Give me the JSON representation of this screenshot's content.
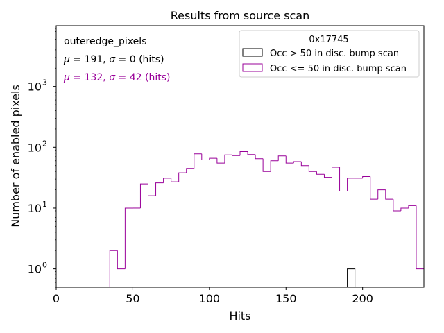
{
  "chart_data": {
    "type": "histogram",
    "title": "Results from source scan",
    "xlabel": "Hits",
    "ylabel": "Number of enabled pixels",
    "xlim": [
      0,
      240
    ],
    "ylim": [
      0.5,
      10000
    ],
    "yscale": "log",
    "xticks": [
      "0",
      "50",
      "100",
      "150",
      "200"
    ],
    "xtick_values": [
      0,
      50,
      100,
      150,
      200
    ],
    "yticks": [
      {
        "value": 1,
        "base": "10",
        "exp": "0"
      },
      {
        "value": 10,
        "base": "10",
        "exp": "1"
      },
      {
        "value": 100,
        "base": "10",
        "exp": "2"
      },
      {
        "value": 1000,
        "base": "10",
        "exp": "3"
      }
    ],
    "annotations": {
      "name": "outeredge_pixels",
      "stats_high": {
        "mu_label": "μ",
        "mu": "191",
        "sigma_label": "σ",
        "sigma": "0",
        "unit": "(hits)"
      },
      "stats_low": {
        "mu_label": "μ",
        "mu": "132",
        "sigma_label": "σ",
        "sigma": "42",
        "unit": "(hits)"
      }
    },
    "legend": {
      "title": "0x17745",
      "placement": "top-right",
      "entries": [
        {
          "label": "Occ > 50 in disc. bump scan",
          "color": "#000000"
        },
        {
          "label": "Occ <= 50 in disc. bump scan",
          "color": "#990099"
        }
      ]
    },
    "series": [
      {
        "name": "Occ > 50 in disc. bump scan",
        "color": "#000000",
        "bin_edges": [
          190,
          195
        ],
        "counts": [
          1
        ]
      },
      {
        "name": "Occ <= 50 in disc. bump scan",
        "color": "#990099",
        "bin_edges": [
          35,
          40,
          45,
          50,
          55,
          60,
          65,
          70,
          75,
          80,
          85,
          90,
          95,
          100,
          105,
          110,
          115,
          120,
          125,
          130,
          135,
          140,
          145,
          150,
          155,
          160,
          165,
          170,
          175,
          180,
          185,
          190,
          195,
          200,
          205,
          210,
          215,
          220,
          225,
          230,
          235,
          240
        ],
        "counts": [
          2,
          1,
          10,
          10,
          25,
          16,
          26,
          31,
          27,
          38,
          45,
          78,
          62,
          66,
          55,
          75,
          73,
          85,
          76,
          65,
          40,
          60,
          72,
          55,
          58,
          50,
          40,
          36,
          32,
          47,
          19,
          31,
          31,
          33,
          14,
          20,
          14,
          9,
          10,
          11,
          1
        ]
      }
    ]
  }
}
